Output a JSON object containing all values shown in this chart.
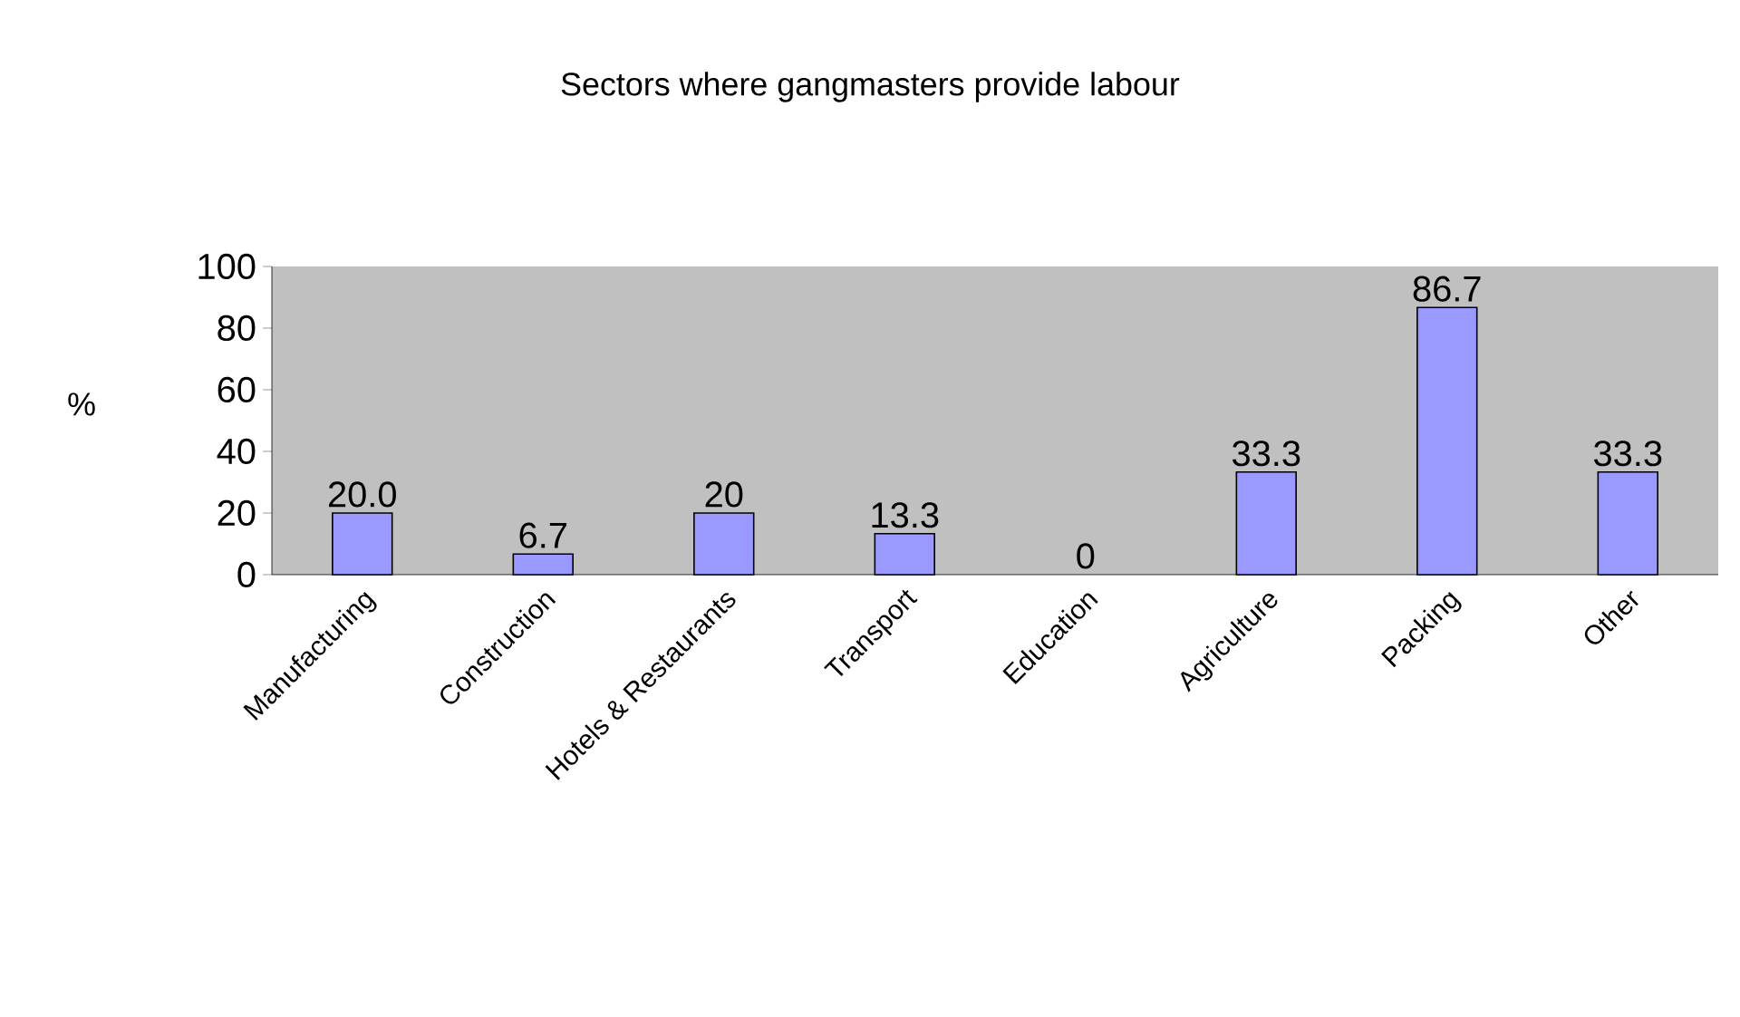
{
  "chart_data": {
    "type": "bar",
    "title": "Sectors where gangmasters provide labour",
    "ylabel": "%",
    "categories": [
      "Manufacturing",
      "Construction",
      "Hotels & Restaurants",
      "Transport",
      "Education",
      "Agriculture",
      "Packing",
      "Other"
    ],
    "values": [
      20.0,
      6.7,
      20,
      13.3,
      0,
      33.3,
      86.7,
      33.3
    ],
    "value_labels": [
      "20.0",
      "6.7",
      "20",
      "13.3",
      "0",
      "33.3",
      "86.7",
      "33.3"
    ],
    "color": "#9999ff",
    "ylim": [
      0,
      100
    ],
    "yticks": [
      0,
      20,
      40,
      60,
      80,
      100
    ],
    "grid": false
  }
}
